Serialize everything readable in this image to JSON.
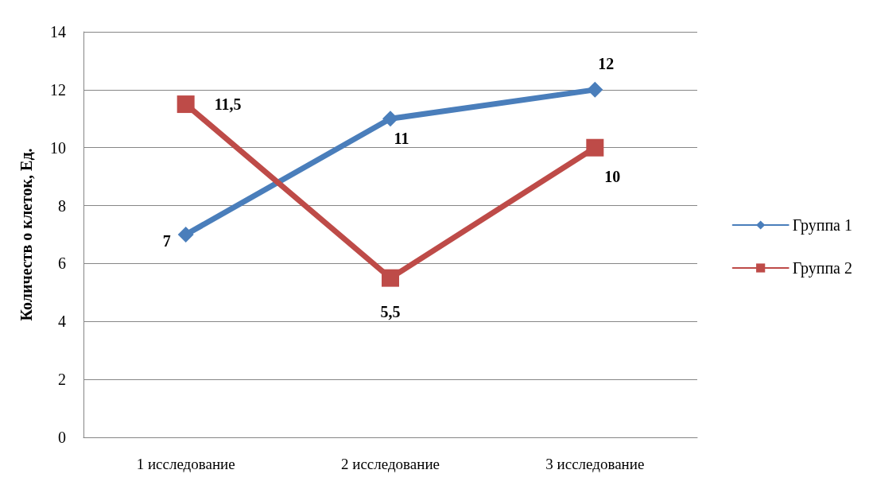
{
  "chart_data": {
    "type": "line",
    "ylabel": "Количеств о клеток, Ед.",
    "categories": [
      "1 исследование",
      "2 исследование",
      "3 исследование"
    ],
    "series": [
      {
        "name": "Группа 1",
        "color": "#4a7ebb",
        "marker": "diamond",
        "values": [
          7,
          11,
          12
        ],
        "value_labels": [
          "7",
          "11",
          "12"
        ]
      },
      {
        "name": "Группа 2",
        "color": "#be4b48",
        "marker": "square",
        "values": [
          11.5,
          5.5,
          10
        ],
        "value_labels": [
          "11,5",
          "5,5",
          "10"
        ]
      }
    ],
    "ylim": [
      0,
      14
    ],
    "yticks": [
      0,
      2,
      4,
      6,
      8,
      10,
      12,
      14
    ],
    "grid": "y",
    "legend": "right"
  }
}
